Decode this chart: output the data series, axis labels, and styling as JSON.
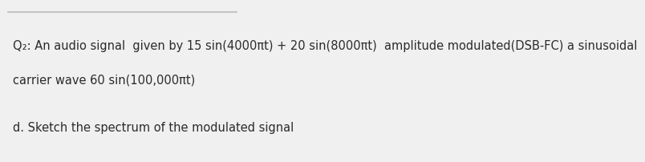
{
  "background_color": "#f0f0f0",
  "top_border_color": "#bbbbbb",
  "line1": "Q₂: An audio signal  given by 15 sin(4000πt) + 20 sin(8000πt)  amplitude modulated(DSB-FC) a sinusoidal",
  "line2": "carrier wave 60 sin(100,000πt)",
  "line3": "d. Sketch the spectrum of the modulated signal",
  "font_size_main": 10.5,
  "font_size_label": 10.5,
  "text_color": "#2b2b2b",
  "fig_width": 6.06,
  "fig_height": 1.85
}
